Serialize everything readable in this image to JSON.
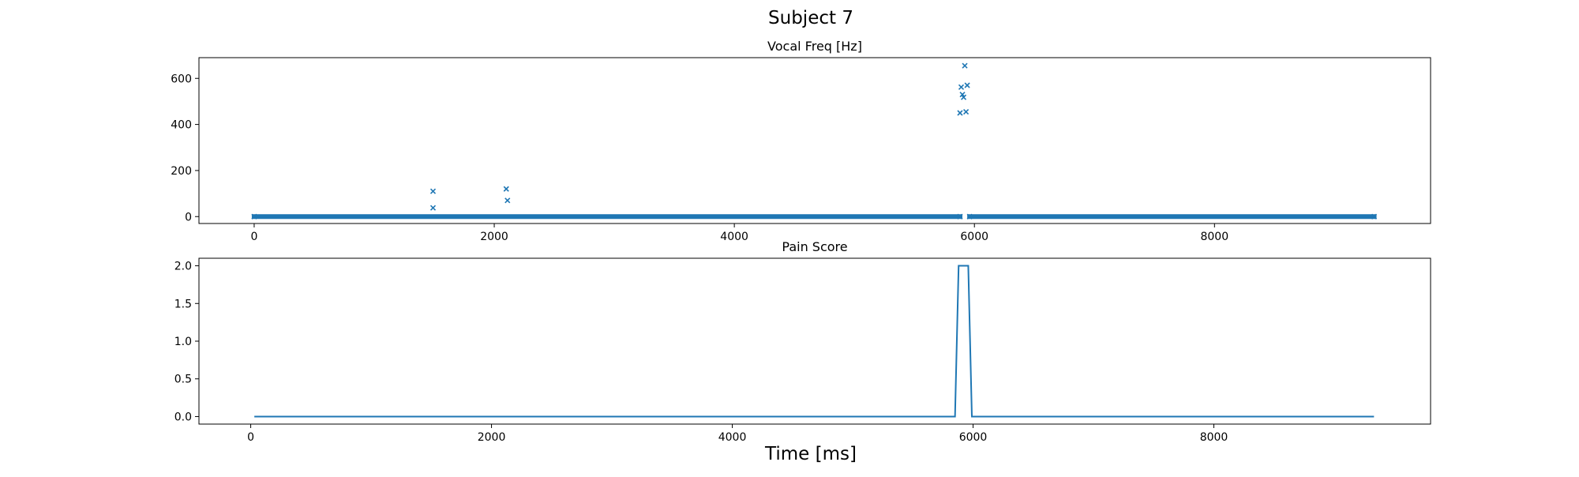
{
  "figure": {
    "title": "Subject 7",
    "xlabel": "Time [ms]"
  },
  "chart_data": [
    {
      "type": "scatter",
      "title": "Vocal Freq [Hz]",
      "xlabel": "",
      "ylabel": "",
      "xlim": [
        -460,
        9800
      ],
      "ylim": [
        -30,
        690
      ],
      "xticks": [
        0,
        2000,
        4000,
        6000,
        8000
      ],
      "yticks": [
        0,
        200,
        400,
        600
      ],
      "marker": "x",
      "color": "#1f77b4",
      "baseline": {
        "y": 0,
        "x_ranges": [
          [
            0,
            5880
          ],
          [
            5960,
            9330
          ]
        ]
      },
      "points": [
        {
          "x": 1490,
          "y": 110
        },
        {
          "x": 1490,
          "y": 38
        },
        {
          "x": 2100,
          "y": 120
        },
        {
          "x": 2110,
          "y": 70
        },
        {
          "x": 5880,
          "y": 450
        },
        {
          "x": 5890,
          "y": 562
        },
        {
          "x": 5900,
          "y": 530
        },
        {
          "x": 5910,
          "y": 518
        },
        {
          "x": 5920,
          "y": 655
        },
        {
          "x": 5930,
          "y": 455
        },
        {
          "x": 5940,
          "y": 570
        }
      ]
    },
    {
      "type": "line",
      "title": "Pain Score",
      "xlabel": "",
      "ylabel": "",
      "xlim": [
        -430,
        9800
      ],
      "ylim": [
        -0.1,
        2.1
      ],
      "xticks": [
        0,
        2000,
        4000,
        6000,
        8000
      ],
      "yticks": [
        0.0,
        0.5,
        1.0,
        1.5,
        2.0
      ],
      "color": "#1f77b4",
      "series": [
        {
          "x": [
            30,
            5850,
            5880,
            5960,
            5990,
            9330
          ],
          "y": [
            0,
            0,
            2,
            2,
            0,
            0
          ]
        }
      ]
    }
  ]
}
